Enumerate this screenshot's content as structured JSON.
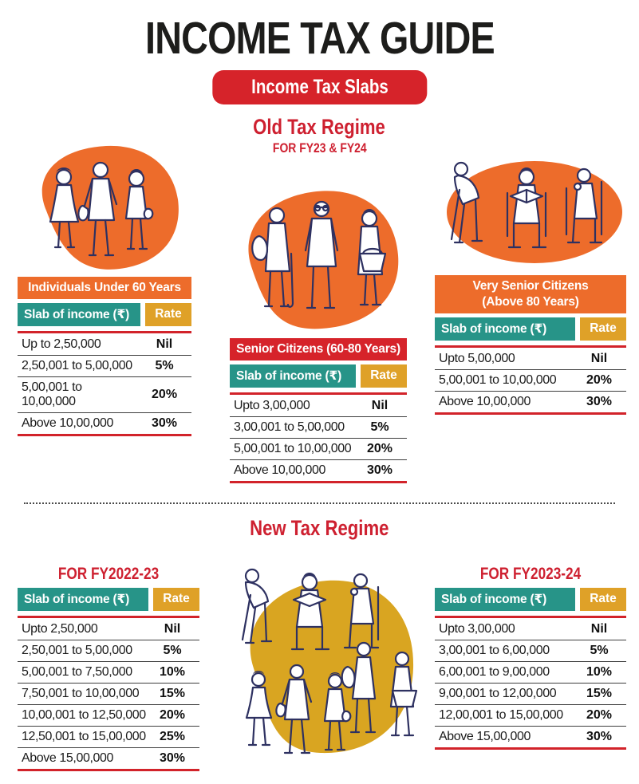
{
  "page": {
    "title": "INCOME TAX GUIDE",
    "badge": "Income Tax Slabs"
  },
  "colors": {
    "red": "#d2232a",
    "orange": "#ed6c2b",
    "teal": "#279488",
    "gold": "#dfa128",
    "illustration_ink": "#2e3161",
    "new_regime_blob": "#d9a521",
    "text": "#1b1b1b"
  },
  "old_regime": {
    "heading": "Old Tax Regime",
    "subheading": "FOR FY23 & FY24",
    "tables": [
      {
        "title": "Individuals Under 60 Years",
        "col_slab": "Slab of income (₹)",
        "col_rate": "Rate",
        "rows": [
          [
            "Up to 2,50,000",
            "Nil"
          ],
          [
            "2,50,001 to 5,00,000",
            "5%"
          ],
          [
            "5,00,001 to 10,00,000",
            "20%"
          ],
          [
            "Above 10,00,000",
            "30%"
          ]
        ]
      },
      {
        "title": "Senior Citizens (60-80 Years)",
        "col_slab": "Slab of income (₹)",
        "col_rate": "Rate",
        "rows": [
          [
            "Upto 3,00,000",
            "Nil"
          ],
          [
            "3,00,001 to 5,00,000",
            "5%"
          ],
          [
            "5,00,001 to 10,00,000",
            "20%"
          ],
          [
            "Above 10,00,000",
            "30%"
          ]
        ]
      },
      {
        "title": "Very Senior Citizens\n(Above 80 Years)",
        "col_slab": "Slab of income (₹)",
        "col_rate": "Rate",
        "rows": [
          [
            "Upto 5,00,000",
            "Nil"
          ],
          [
            "5,00,001 to 10,00,000",
            "20%"
          ],
          [
            "Above 10,00,000",
            "30%"
          ]
        ]
      }
    ]
  },
  "new_regime": {
    "heading": "New Tax Regime",
    "tables": [
      {
        "title": "FOR FY2022-23",
        "col_slab": "Slab of income (₹)",
        "col_rate": "Rate",
        "rows": [
          [
            "Upto 2,50,000",
            "Nil"
          ],
          [
            "2,50,001 to 5,00,000",
            "5%"
          ],
          [
            "5,00,001 to 7,50,000",
            "10%"
          ],
          [
            "7,50,001 to 10,00,000",
            "15%"
          ],
          [
            "10,00,001 to 12,50,000",
            "20%"
          ],
          [
            "12,50,001 to 15,00,000",
            "25%"
          ],
          [
            "Above 15,00,000",
            "30%"
          ]
        ]
      },
      {
        "title": "FOR FY2023-24",
        "col_slab": "Slab of income (₹)",
        "col_rate": "Rate",
        "rows": [
          [
            "Upto 3,00,000",
            "Nil"
          ],
          [
            "3,00,001 to 6,00,000",
            "5%"
          ],
          [
            "6,00,001 to 9,00,000",
            "10%"
          ],
          [
            "9,00,001 to 12,00,000",
            "15%"
          ],
          [
            "12,00,001 to 15,00,000",
            "20%"
          ],
          [
            "Above 15,00,000",
            "30%"
          ]
        ]
      }
    ]
  },
  "illustrations": {
    "old_left": "adults-walking-illustration",
    "old_middle": "senior-citizens-standing-illustration",
    "old_right": "very-senior-citizens-seated-illustration",
    "new_center": "people-group-illustration"
  }
}
